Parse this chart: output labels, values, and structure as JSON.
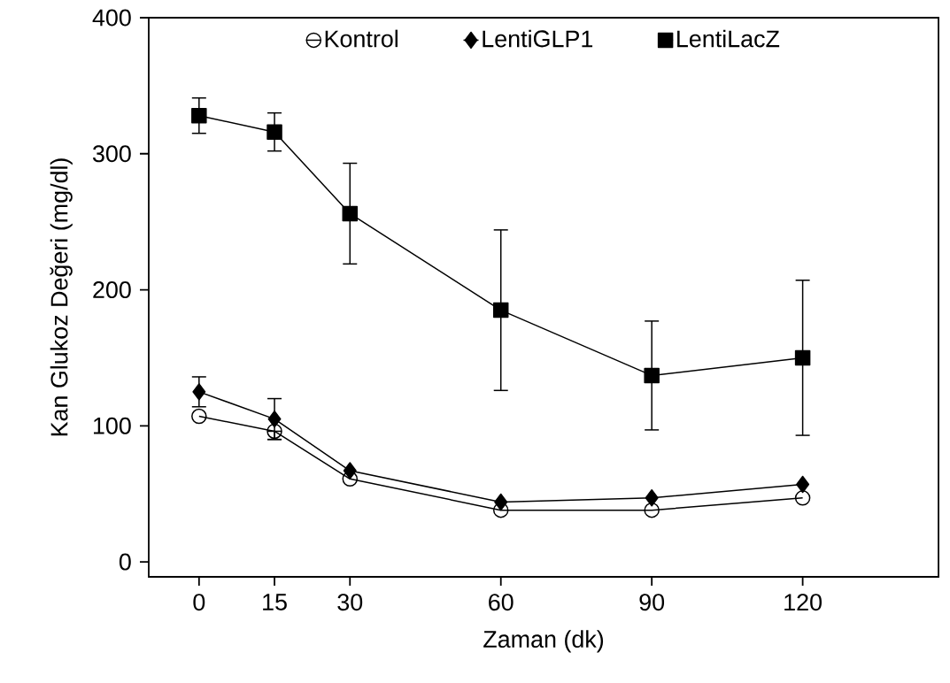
{
  "chart_data": {
    "type": "line",
    "xlabel": "Zaman (dk)",
    "ylabel": "Kan Glukoz Değeri (mg/dl)",
    "x": [
      0,
      15,
      30,
      60,
      90,
      120
    ],
    "xlim": [
      -10,
      147
    ],
    "ylim": [
      -11,
      400
    ],
    "xticks": [
      0,
      15,
      30,
      60,
      90,
      120
    ],
    "yticks": [
      0,
      100,
      200,
      300,
      400
    ],
    "legend": "top",
    "series": [
      {
        "name": "Kontrol",
        "color": "#000000",
        "marker": "circle",
        "values": [
          107,
          96,
          61,
          38,
          38,
          47
        ],
        "errors": [
          null,
          [
            90,
            96
          ],
          null,
          null,
          null,
          null
        ]
      },
      {
        "name": "LentiGLP1",
        "color": "#000000",
        "marker": "diamond",
        "values": [
          125,
          105,
          67,
          44,
          47,
          57
        ],
        "errors": [
          11,
          15,
          null,
          null,
          null,
          null
        ]
      },
      {
        "name": "LentiLacZ",
        "color": "#000000",
        "marker": "square",
        "values": [
          328,
          316,
          256,
          185,
          137,
          150
        ],
        "errors": [
          13,
          14,
          37,
          59,
          40,
          57
        ]
      }
    ]
  }
}
